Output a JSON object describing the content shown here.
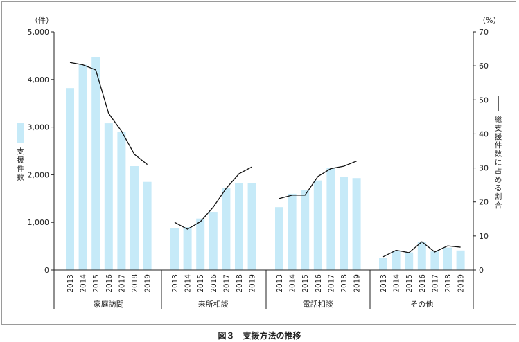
{
  "caption": "図３　支援方法の推移",
  "chart_data": {
    "type": "bar",
    "left_axis": {
      "unit": "（件）",
      "label_chars": [
        "支",
        "援",
        "件",
        "数"
      ],
      "ticks": [
        "0",
        "1,000",
        "2,000",
        "3,000",
        "4,000",
        "5,000"
      ],
      "tick_values": [
        0,
        1000,
        2000,
        3000,
        4000,
        5000
      ],
      "ylim": [
        0,
        5000
      ]
    },
    "right_axis": {
      "unit": "（%）",
      "label_chars": [
        "総",
        "支",
        "援",
        "件",
        "数",
        "に",
        "占",
        "め",
        "る",
        "割",
        "合"
      ],
      "ticks": [
        "0",
        "10",
        "20",
        "30",
        "40",
        "50",
        "60",
        "70"
      ],
      "tick_values": [
        0,
        10,
        20,
        30,
        40,
        50,
        60,
        70
      ],
      "ylim": [
        0,
        70
      ]
    },
    "years": [
      "2013",
      "2014",
      "2015",
      "2016",
      "2017",
      "2018",
      "2019"
    ],
    "groups": [
      {
        "name": "家庭訪問",
        "bars": [
          3820,
          4310,
          4470,
          3080,
          2900,
          2180,
          1850
        ],
        "line": [
          61.0,
          60.3,
          58.8,
          46.0,
          40.8,
          34.0,
          31.0
        ]
      },
      {
        "name": "来所相談",
        "bars": [
          880,
          900,
          1080,
          1220,
          1720,
          1820,
          1820
        ],
        "line": [
          14.0,
          12.0,
          14.2,
          18.5,
          24.0,
          28.3,
          30.3
        ]
      },
      {
        "name": "電話相談",
        "bars": [
          1320,
          1600,
          1680,
          1880,
          2150,
          1960,
          1930
        ],
        "line": [
          21.0,
          22.0,
          22.0,
          27.5,
          29.8,
          30.5,
          32.0
        ]
      },
      {
        "name": "その他",
        "bars": [
          260,
          400,
          370,
          590,
          390,
          470,
          410
        ],
        "line": [
          3.9,
          5.8,
          5.1,
          8.3,
          5.3,
          7.1,
          6.7
        ]
      }
    ],
    "colors": {
      "bar": "#c6eaf8",
      "line": "#111111",
      "axis": "#222222",
      "frame": "#9a9a9a"
    },
    "legend": {
      "bar_legend": "left, next to left axis label",
      "line_legend": "right, next to right axis label"
    },
    "grid": false
  }
}
